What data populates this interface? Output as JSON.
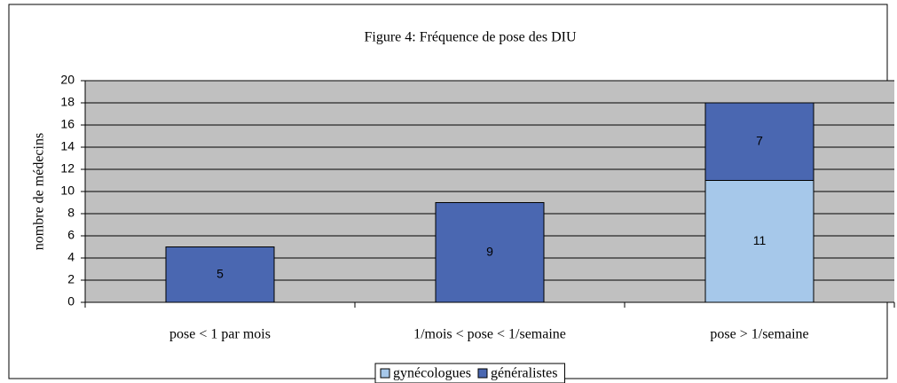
{
  "chart_data": {
    "type": "stacked_bar",
    "title": "Figure 4: Fréquence de pose des DIU",
    "y_label": "nombre de médecins",
    "categories": [
      "pose < 1 par mois",
      "1/mois < pose < 1/semaine",
      "pose > 1/semaine"
    ],
    "series": [
      {
        "name": "gynécologues",
        "color": "#a6c8ea",
        "values": [
          null,
          null,
          11
        ]
      },
      {
        "name": "généralistes",
        "color": "#4a67b1",
        "values": [
          5,
          9,
          7
        ]
      }
    ],
    "ylim": [
      0,
      20
    ],
    "yticks": [
      0,
      2,
      4,
      6,
      8,
      10,
      12,
      14,
      16,
      18,
      20
    ],
    "grid": true,
    "legend": "bottom"
  }
}
